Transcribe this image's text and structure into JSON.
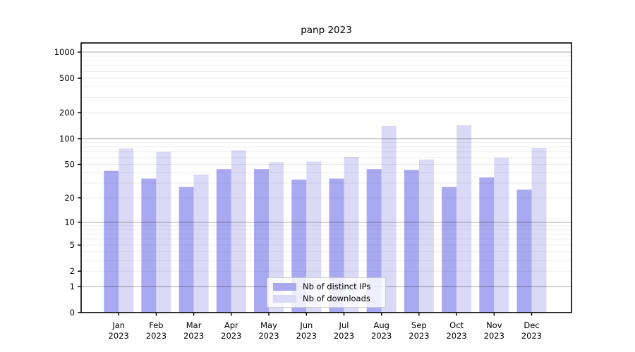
{
  "chart_data": {
    "type": "bar",
    "title": "panp 2023",
    "x_axis": {
      "months": [
        "Jan",
        "Feb",
        "Mar",
        "Apr",
        "May",
        "Jun",
        "Jul",
        "Aug",
        "Sep",
        "Oct",
        "Nov",
        "Dec"
      ],
      "year": "2023"
    },
    "y_axis": {
      "scale": "log-like (log10 of value+1)",
      "ticks": [
        0,
        1,
        2,
        5,
        10,
        20,
        50,
        100,
        200,
        500,
        1000
      ],
      "range_top": 1270
    },
    "series": [
      {
        "name": "Nb of distinct IPs",
        "color": "#a9a9f2",
        "values": [
          42,
          34,
          27,
          44,
          44,
          33,
          34,
          44,
          43,
          27,
          35,
          25
        ]
      },
      {
        "name": "Nb of downloads",
        "color": "#dadaf7",
        "values": [
          77,
          70,
          38,
          73,
          53,
          54,
          61,
          140,
          57,
          143,
          60,
          78
        ]
      }
    ],
    "legend": {
      "position": "bottom-center",
      "items": [
        "Nb of distinct IPs",
        "Nb of downloads"
      ]
    },
    "grid": {
      "major_color": "rgba(0,0,0,0.32)",
      "minor_color": "rgba(0,0,0,0.07)"
    }
  }
}
